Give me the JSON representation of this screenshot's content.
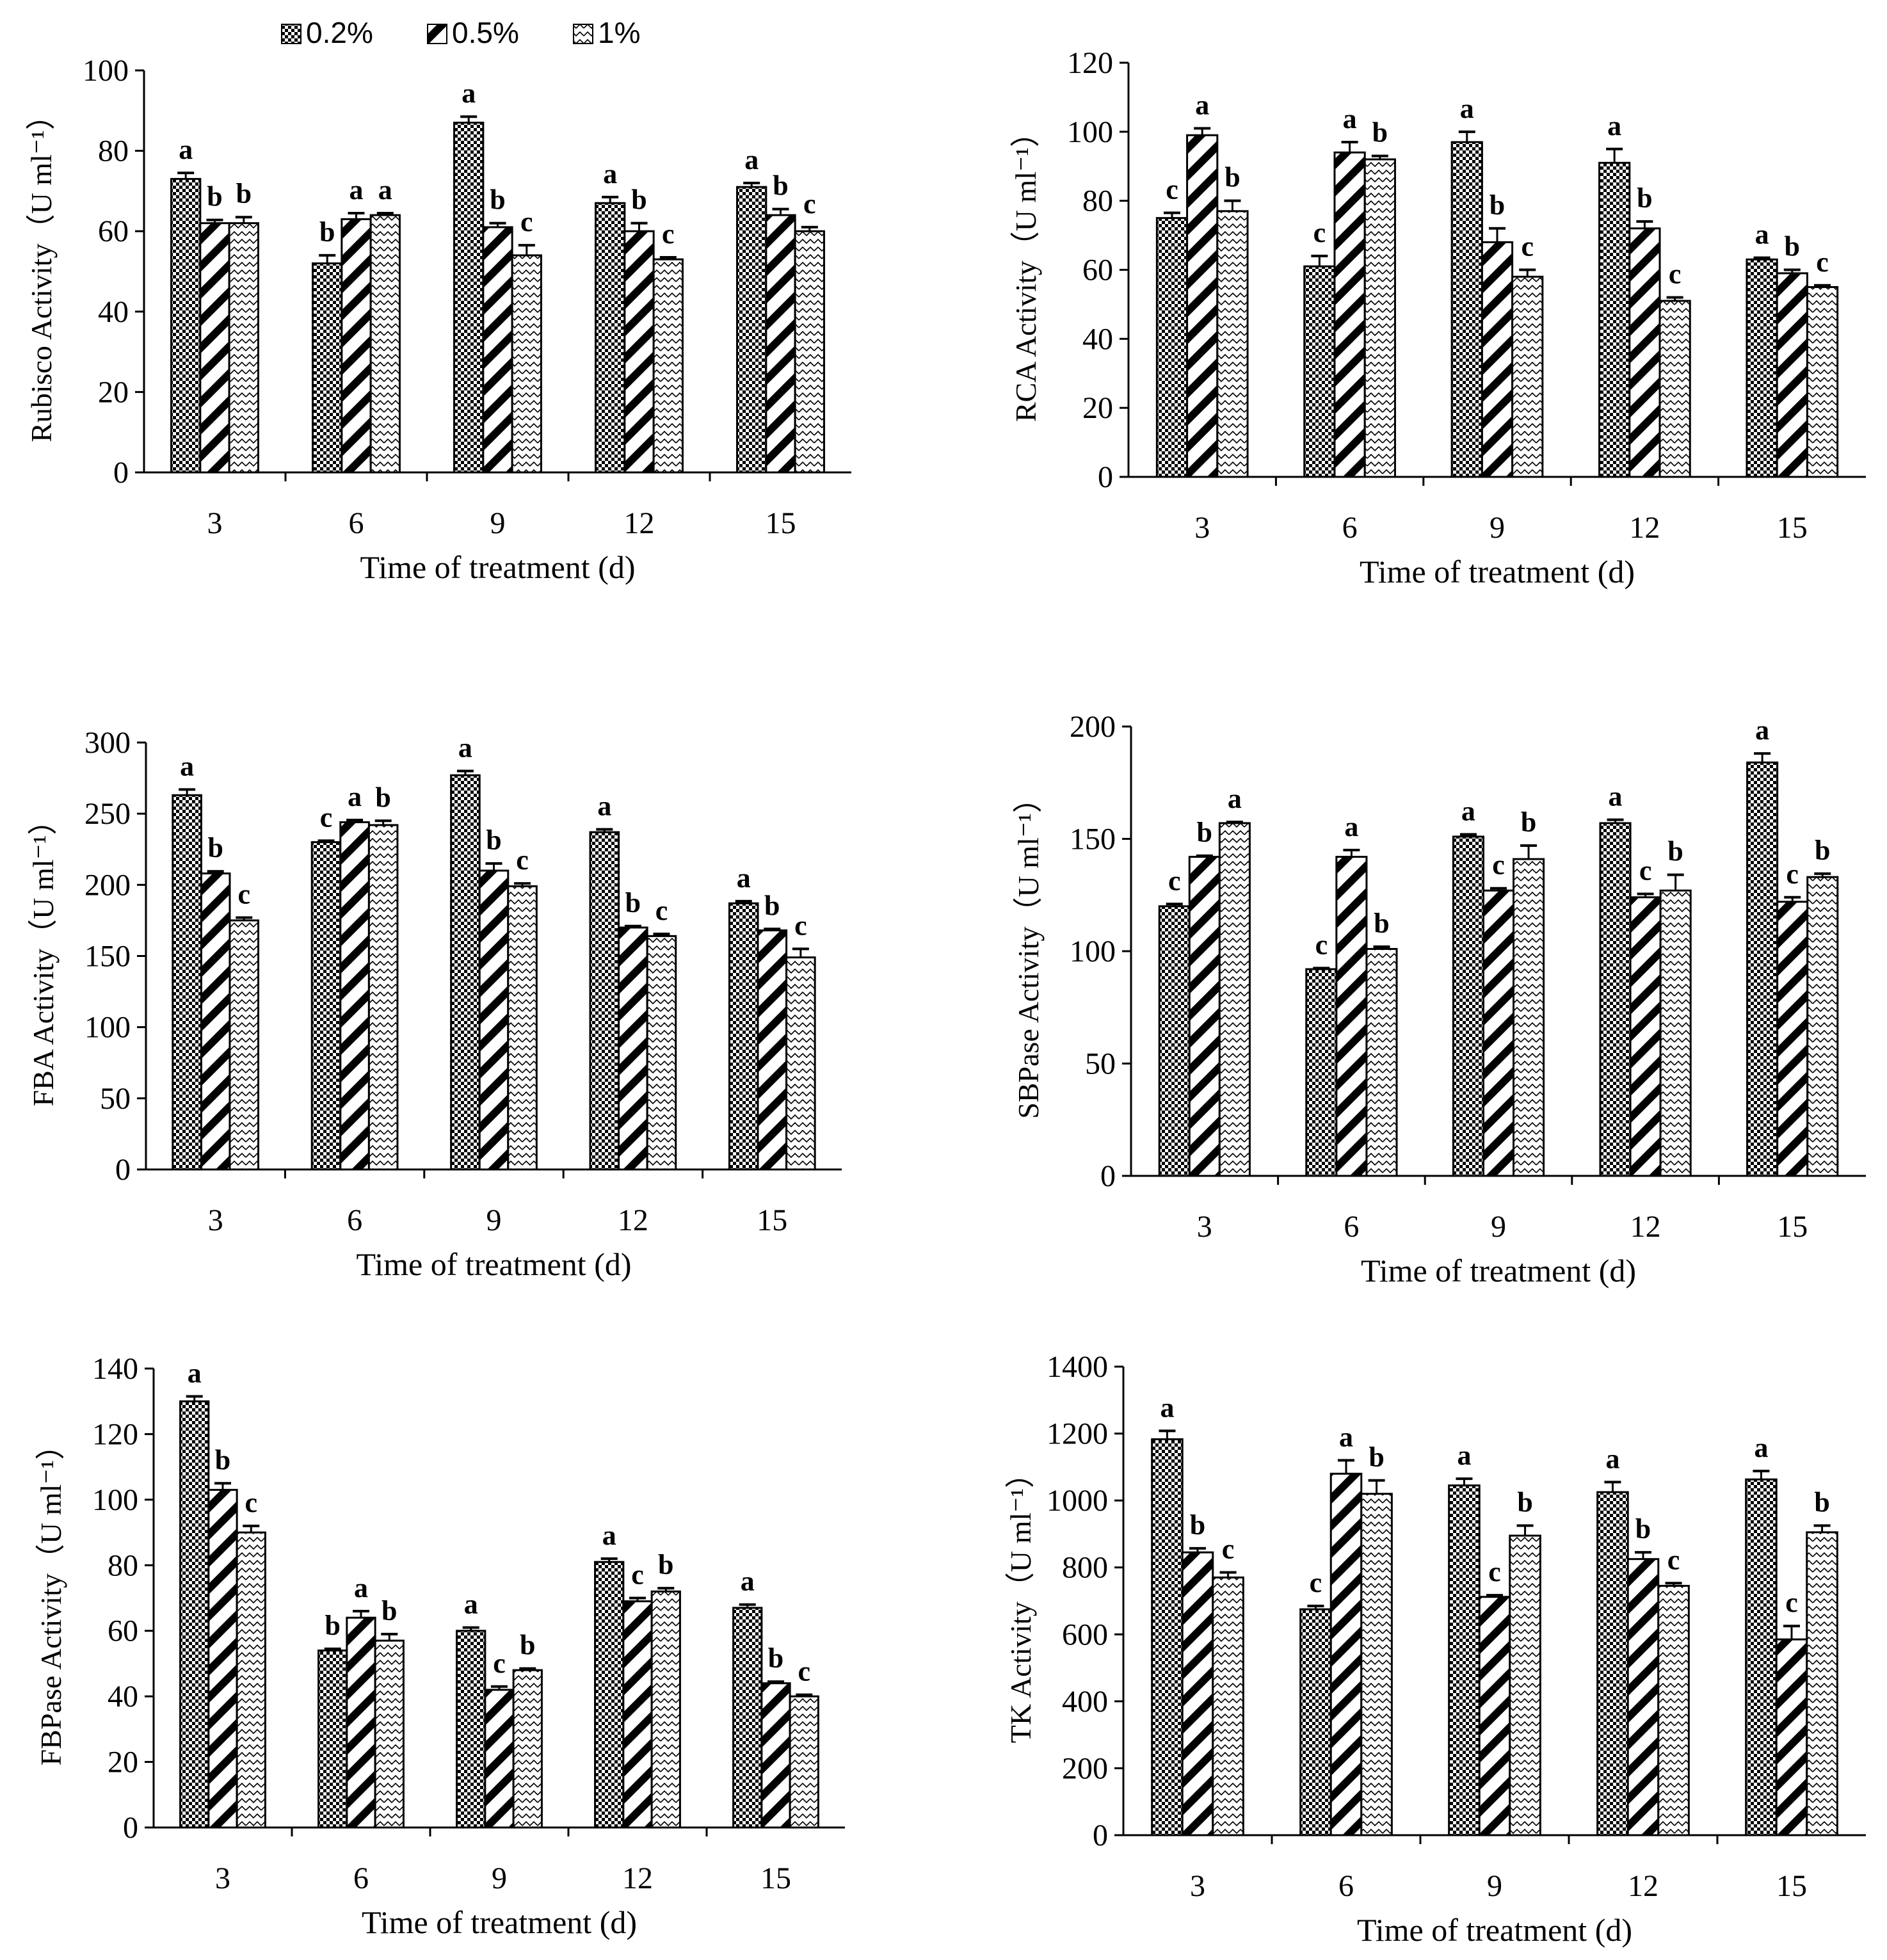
{
  "legend": {
    "entries": [
      "0.2%",
      "0.5%",
      "1%"
    ]
  },
  "chart_data": [
    {
      "type": "bar",
      "ylabel": "Rubisco Activity（U ml⁻¹）",
      "xlabel": "Time of treatment (d)",
      "categories": [
        "3",
        "6",
        "9",
        "12",
        "15"
      ],
      "ylim": [
        0,
        100
      ],
      "yticks": [
        0,
        20,
        40,
        60,
        80,
        100
      ],
      "series": [
        {
          "name": "0.2%",
          "values": [
            73,
            52,
            87,
            67,
            71
          ],
          "errors": [
            1.5,
            2,
            1.5,
            1.5,
            1
          ],
          "letters": [
            "a",
            "b",
            "a",
            "a",
            "a"
          ]
        },
        {
          "name": "0.5%",
          "values": [
            62,
            63,
            61,
            60,
            64
          ],
          "errors": [
            0.8,
            1.5,
            1,
            2,
            1.5
          ],
          "letters": [
            "b",
            "a",
            "b",
            "b",
            "b"
          ]
        },
        {
          "name": "1%",
          "values": [
            62,
            64,
            54,
            53,
            60
          ],
          "errors": [
            1.5,
            0.5,
            2.5,
            0.5,
            1
          ],
          "letters": [
            "b",
            "a",
            "c",
            "c",
            "c"
          ]
        }
      ]
    },
    {
      "type": "bar",
      "ylabel": "RCA Activity（U ml⁻¹）",
      "xlabel": "Time of treatment (d)",
      "categories": [
        "3",
        "6",
        "9",
        "12",
        "15"
      ],
      "ylim": [
        0,
        120
      ],
      "yticks": [
        0,
        20,
        40,
        60,
        80,
        100,
        120
      ],
      "series": [
        {
          "name": "0.2%",
          "values": [
            75,
            61,
            97,
            91,
            63
          ],
          "errors": [
            1.5,
            3,
            3,
            4,
            0.5
          ],
          "letters": [
            "c",
            "c",
            "a",
            "a",
            "a"
          ]
        },
        {
          "name": "0.5%",
          "values": [
            99,
            94,
            68,
            72,
            59
          ],
          "errors": [
            2,
            3,
            4,
            2,
            1
          ],
          "letters": [
            "a",
            "a",
            "b",
            "b",
            "b"
          ]
        },
        {
          "name": "1%",
          "values": [
            77,
            92,
            58,
            51,
            55
          ],
          "errors": [
            3,
            1,
            2,
            1,
            0.5
          ],
          "letters": [
            "b",
            "b",
            "c",
            "c",
            "c"
          ]
        }
      ]
    },
    {
      "type": "bar",
      "ylabel": "FBA Activity（U ml⁻¹）",
      "xlabel": "Time of treatment (d)",
      "categories": [
        "3",
        "6",
        "9",
        "12",
        "15"
      ],
      "ylim": [
        0,
        300
      ],
      "yticks": [
        0,
        50,
        100,
        150,
        200,
        250,
        300
      ],
      "series": [
        {
          "name": "0.2%",
          "values": [
            263,
            230,
            277,
            237,
            187
          ],
          "errors": [
            4,
            1,
            3,
            2,
            1.5
          ],
          "letters": [
            "a",
            "c",
            "a",
            "a",
            "a"
          ]
        },
        {
          "name": "0.5%",
          "values": [
            208,
            244,
            210,
            170,
            168
          ],
          "errors": [
            1.5,
            1.5,
            5,
            1,
            1
          ],
          "letters": [
            "b",
            "a",
            "b",
            "b",
            "b"
          ]
        },
        {
          "name": "1%",
          "values": [
            175,
            242,
            199,
            164,
            149
          ],
          "errors": [
            2,
            3,
            2,
            1.5,
            6
          ],
          "letters": [
            "c",
            "b",
            "c",
            "c",
            "c"
          ]
        }
      ]
    },
    {
      "type": "bar",
      "ylabel": "SBPase Activity（U ml⁻¹）",
      "xlabel": "Time of treatment (d)",
      "categories": [
        "3",
        "6",
        "9",
        "12",
        "15"
      ],
      "ylim": [
        0,
        200
      ],
      "yticks": [
        0,
        50,
        100,
        150,
        200
      ],
      "series": [
        {
          "name": "0.2%",
          "values": [
            120,
            92,
            151,
            157,
            184
          ],
          "errors": [
            1,
            0.5,
            1,
            1.5,
            4
          ],
          "letters": [
            "c",
            "c",
            "a",
            "a",
            "a"
          ]
        },
        {
          "name": "0.5%",
          "values": [
            142,
            142,
            127,
            124,
            122
          ],
          "errors": [
            0.5,
            3,
            1,
            1.5,
            2
          ],
          "letters": [
            "b",
            "a",
            "c",
            "c",
            "c"
          ]
        },
        {
          "name": "1%",
          "values": [
            157,
            101,
            141,
            127,
            133
          ],
          "errors": [
            0.5,
            1,
            6,
            7,
            1.5
          ],
          "letters": [
            "a",
            "b",
            "b",
            "b",
            "b"
          ]
        }
      ]
    },
    {
      "type": "bar",
      "ylabel": "FBPase Activity（U ml⁻¹）",
      "xlabel": "Time of treatment (d)",
      "categories": [
        "3",
        "6",
        "9",
        "12",
        "15"
      ],
      "ylim": [
        0,
        140
      ],
      "yticks": [
        0,
        20,
        40,
        60,
        80,
        100,
        120,
        140
      ],
      "series": [
        {
          "name": "0.2%",
          "values": [
            130,
            54,
            60,
            81,
            67
          ],
          "errors": [
            1.5,
            0.5,
            1,
            1,
            1
          ],
          "letters": [
            "a",
            "b",
            "a",
            "a",
            "a"
          ]
        },
        {
          "name": "0.5%",
          "values": [
            103,
            64,
            42,
            69,
            44
          ],
          "errors": [
            2,
            2,
            1,
            1,
            0.5
          ],
          "letters": [
            "b",
            "a",
            "c",
            "c",
            "b"
          ]
        },
        {
          "name": "1%",
          "values": [
            90,
            57,
            48,
            72,
            40
          ],
          "errors": [
            2,
            2,
            0.5,
            1,
            0.5
          ],
          "letters": [
            "c",
            "b",
            "b",
            "b",
            "c"
          ]
        }
      ]
    },
    {
      "type": "bar",
      "ylabel": "TK Activity（U ml⁻¹）",
      "xlabel": "Time of treatment (d)",
      "categories": [
        "3",
        "6",
        "9",
        "12",
        "15"
      ],
      "ylim": [
        0,
        1400
      ],
      "yticks": [
        0,
        200,
        400,
        600,
        800,
        1000,
        1200,
        1400
      ],
      "series": [
        {
          "name": "0.2%",
          "values": [
            1183,
            675,
            1045,
            1025,
            1063
          ],
          "errors": [
            25,
            10,
            20,
            30,
            25
          ],
          "letters": [
            "a",
            "c",
            "a",
            "a",
            "a"
          ]
        },
        {
          "name": "0.5%",
          "values": [
            845,
            1080,
            712,
            825,
            585
          ],
          "errors": [
            12,
            40,
            5,
            20,
            40
          ],
          "letters": [
            "b",
            "a",
            "c",
            "b",
            "c"
          ]
        },
        {
          "name": "1%",
          "values": [
            770,
            1020,
            895,
            745,
            905
          ],
          "errors": [
            15,
            40,
            30,
            8,
            20
          ],
          "letters": [
            "c",
            "b",
            "b",
            "c",
            "b"
          ]
        }
      ]
    }
  ]
}
